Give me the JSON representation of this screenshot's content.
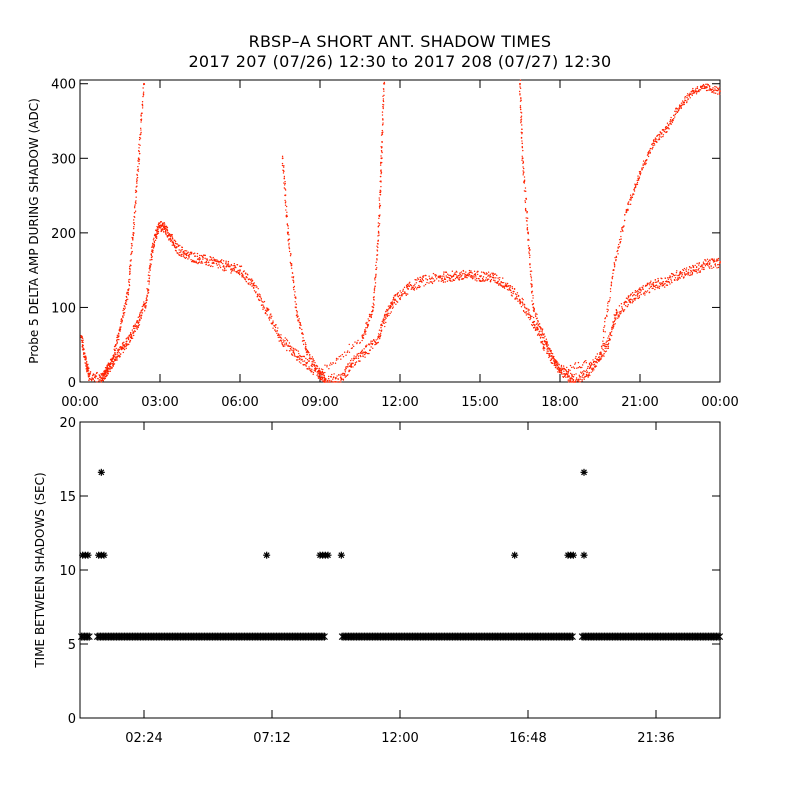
{
  "title": "RBSP–A SHORT ANT. SHADOW TIMES",
  "subtitle": "2017 207 (07/26) 12:30 to 2017 208 (07/27) 12:30",
  "colors": {
    "top_series": "#ff2200",
    "bottom_series": "#000000",
    "axes": "#000000"
  },
  "chart_data": [
    {
      "type": "scatter",
      "ylabel": "Probe 5 DELTA AMP DURING SHADOW (ADC)",
      "xlabel": "",
      "x_unit": "hours",
      "xlim": [
        0,
        24
      ],
      "ylim": [
        0,
        405
      ],
      "xticks": [
        0,
        3,
        6,
        9,
        12,
        15,
        18,
        21,
        24
      ],
      "xtick_labels": [
        "00:00",
        "03:00",
        "06:00",
        "09:00",
        "12:00",
        "15:00",
        "18:00",
        "21:00",
        "00:00"
      ],
      "yticks": [
        0,
        100,
        200,
        300,
        400
      ],
      "ytick_labels": [
        "0",
        "100",
        "200",
        "300",
        "400"
      ],
      "series": [
        {
          "points": [
            [
              0.05,
              60
            ],
            [
              0.2,
              30
            ],
            [
              0.35,
              8
            ],
            [
              0.8,
              5
            ],
            [
              1.0,
              15
            ],
            [
              1.3,
              30
            ],
            [
              1.6,
              45
            ],
            [
              1.9,
              60
            ],
            [
              2.2,
              80
            ],
            [
              2.5,
              110
            ],
            [
              2.7,
              175
            ],
            [
              2.9,
              205
            ],
            [
              3.1,
              210
            ],
            [
              3.3,
              200
            ],
            [
              3.6,
              180
            ],
            [
              4.0,
              170
            ],
            [
              4.5,
              165
            ],
            [
              5.0,
              160
            ],
            [
              5.5,
              155
            ],
            [
              6.0,
              150
            ],
            [
              6.5,
              130
            ],
            [
              7.0,
              95
            ],
            [
              7.5,
              60
            ],
            [
              8.0,
              40
            ],
            [
              8.5,
              25
            ],
            [
              9.0,
              10
            ],
            [
              9.2,
              3
            ],
            [
              9.8,
              5
            ],
            [
              10.2,
              25
            ],
            [
              10.7,
              40
            ],
            [
              11.2,
              60
            ],
            [
              11.5,
              90
            ],
            [
              11.8,
              110
            ],
            [
              12.3,
              125
            ],
            [
              12.8,
              135
            ],
            [
              13.5,
              140
            ],
            [
              14.0,
              142
            ],
            [
              14.5,
              143
            ],
            [
              15.0,
              142
            ],
            [
              15.5,
              140
            ],
            [
              16.0,
              130
            ],
            [
              16.5,
              110
            ],
            [
              17.0,
              80
            ],
            [
              17.4,
              50
            ],
            [
              17.8,
              25
            ],
            [
              18.2,
              10
            ],
            [
              18.5,
              3
            ],
            [
              19.0,
              10
            ],
            [
              19.4,
              30
            ],
            [
              19.8,
              50
            ],
            [
              20.1,
              90
            ],
            [
              20.6,
              110
            ],
            [
              21.0,
              120
            ],
            [
              21.5,
              130
            ],
            [
              22.0,
              135
            ],
            [
              22.5,
              145
            ],
            [
              23.0,
              150
            ],
            [
              23.5,
              158
            ],
            [
              24.0,
              160
            ]
          ]
        },
        {
          "points": [
            [
              0.9,
              5
            ],
            [
              1.2,
              30
            ],
            [
              1.5,
              70
            ],
            [
              1.8,
              120
            ],
            [
              2.0,
              200
            ],
            [
              2.2,
              300
            ],
            [
              2.4,
              400
            ],
            [
              7.6,
              300
            ],
            [
              7.8,
              200
            ],
            [
              8.1,
              100
            ],
            [
              8.5,
              40
            ],
            [
              9.0,
              12
            ],
            [
              10.6,
              60
            ],
            [
              11.0,
              100
            ],
            [
              11.2,
              200
            ],
            [
              11.3,
              300
            ],
            [
              11.4,
              400
            ],
            [
              16.5,
              400
            ],
            [
              16.6,
              300
            ],
            [
              16.8,
              200
            ],
            [
              17.0,
              100
            ],
            [
              17.5,
              50
            ],
            [
              18.0,
              15
            ],
            [
              19.5,
              30
            ],
            [
              20.0,
              150
            ],
            [
              20.5,
              230
            ],
            [
              21.0,
              280
            ],
            [
              21.5,
              320
            ],
            [
              22.0,
              340
            ],
            [
              22.5,
              370
            ],
            [
              23.0,
              390
            ],
            [
              23.5,
              395
            ],
            [
              24.0,
              390
            ]
          ]
        }
      ]
    },
    {
      "type": "scatter",
      "ylabel": "TIME BETWEEN SHADOWS (SEC)",
      "xlabel": "",
      "x_unit": "hours",
      "xlim": [
        0,
        24
      ],
      "ylim": [
        0,
        20
      ],
      "xticks": [
        2.4,
        7.2,
        12.0,
        16.8,
        21.6
      ],
      "xtick_labels": [
        "02:24",
        "07:12",
        "12:00",
        "16:48",
        "21:36"
      ],
      "yticks": [
        0,
        5,
        10,
        15,
        20
      ],
      "ytick_labels": [
        "0",
        "5",
        "10",
        "15",
        "20"
      ],
      "marker": "asterisk",
      "baseline": {
        "y": 5.5,
        "x_start": 0.05,
        "x_end": 24.0,
        "gaps": [
          [
            0.35,
            0.65
          ],
          [
            9.2,
            9.8
          ],
          [
            18.5,
            18.8
          ]
        ]
      },
      "series": [
        {
          "points": [
            [
              0.1,
              11.0
            ],
            [
              0.2,
              11.0
            ],
            [
              0.3,
              11.0
            ],
            [
              0.7,
              11.0
            ],
            [
              0.8,
              11.0
            ],
            [
              0.9,
              11.0
            ],
            [
              0.8,
              16.6
            ],
            [
              7.0,
              11.0
            ],
            [
              9.0,
              11.0
            ],
            [
              9.1,
              11.0
            ],
            [
              9.2,
              11.0
            ],
            [
              9.3,
              11.0
            ],
            [
              9.8,
              11.0
            ],
            [
              16.3,
              11.0
            ],
            [
              18.3,
              11.0
            ],
            [
              18.4,
              11.0
            ],
            [
              18.5,
              11.0
            ],
            [
              18.9,
              16.6
            ],
            [
              18.9,
              11.0
            ]
          ]
        }
      ]
    }
  ]
}
